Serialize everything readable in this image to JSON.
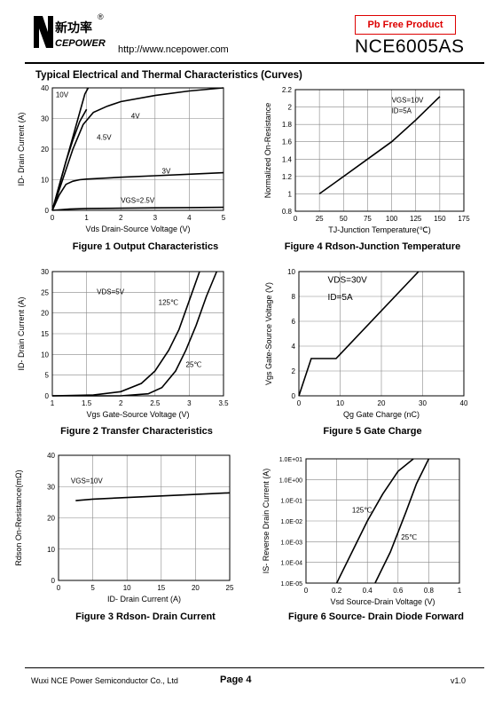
{
  "header": {
    "logo_text": "新功率",
    "logo_sub": "CEPOWER",
    "logo_mark": "N",
    "registered": "®",
    "url": "http://www.ncepower.com",
    "badge": "Pb Free Product",
    "part_number": "NCE6005AS"
  },
  "section_title": "Typical Electrical and Thermal Characteristics (Curves)",
  "figures": {
    "fig1": {
      "caption": "Figure 1 Output Characteristics",
      "xlabel": "Vds Drain-Source Voltage (V)",
      "ylabel": "ID- Drain Current (A)"
    },
    "fig2": {
      "caption": "Figure 2 Transfer Characteristics",
      "xlabel": "Vgs Gate-Source Voltage (V)",
      "ylabel": "ID- Drain Current (A)"
    },
    "fig3": {
      "caption": "Figure 3 Rdson- Drain Current",
      "xlabel": "ID- Drain Current (A)",
      "ylabel": "Rdson On-Resistance(mΩ)"
    },
    "fig4": {
      "caption": "Figure 4 Rdson-Junction Temperature",
      "xlabel": "TJ-Junction Temperature(℃)",
      "ylabel": "Normalized On-Resistance"
    },
    "fig5": {
      "caption": "Figure 5 Gate Charge",
      "xlabel": "Qg Gate Charge (nC)",
      "ylabel": "Vgs Gate-Source Voltage (V)"
    },
    "fig6": {
      "caption": "Figure 6 Source- Drain Diode Forward",
      "xlabel": "Vsd Source-Drain Voltage (V)",
      "ylabel": "IS- Reverse Drain Current (A)"
    }
  },
  "chart_data": [
    {
      "id": "fig1",
      "type": "line",
      "xlim": [
        0,
        5
      ],
      "ylim": [
        0,
        40
      ],
      "xticks": [
        0,
        1,
        2,
        3,
        4,
        5
      ],
      "yticks": [
        0,
        10,
        20,
        30,
        40
      ],
      "grid": true,
      "series": [
        {
          "name": "10V",
          "x": [
            0,
            0.2,
            0.4,
            0.6,
            0.8,
            0.95,
            1.05
          ],
          "y": [
            0,
            8,
            16,
            24,
            32,
            38,
            40
          ]
        },
        {
          "name": "4V",
          "x": [
            0,
            0.3,
            0.6,
            0.9,
            1.2,
            1.6,
            2,
            3,
            4,
            5
          ],
          "y": [
            0,
            10,
            20,
            28,
            32,
            34,
            35.5,
            37.5,
            39,
            40
          ]
        },
        {
          "name": "4.5V",
          "x": [
            0,
            0.2,
            0.4,
            0.6,
            0.8,
            1.0
          ],
          "y": [
            0,
            8,
            16,
            23,
            29,
            33
          ]
        },
        {
          "name": "3V",
          "x": [
            0,
            0.2,
            0.4,
            0.6,
            0.8,
            1,
            2,
            3,
            4,
            5
          ],
          "y": [
            0,
            5,
            8.5,
            9.5,
            10,
            10.2,
            10.8,
            11.3,
            11.8,
            12.3
          ]
        },
        {
          "name": "VGS=2.5V",
          "x": [
            0,
            0.5,
            1,
            2,
            3,
            4,
            5
          ],
          "y": [
            0,
            0.4,
            0.6,
            0.7,
            0.8,
            0.9,
            1.0
          ]
        }
      ],
      "labels": [
        "10V",
        "4V",
        "4.5V",
        "3V",
        "VGS=2.5V"
      ]
    },
    {
      "id": "fig2",
      "type": "line",
      "xlim": [
        1,
        3.5
      ],
      "ylim": [
        0,
        30
      ],
      "xticks": [
        1,
        1.5,
        2,
        2.5,
        3,
        3.5
      ],
      "yticks": [
        0,
        5,
        10,
        15,
        20,
        25,
        30
      ],
      "grid": true,
      "series": [
        {
          "name": "125℃",
          "x": [
            1,
            1.6,
            2.0,
            2.3,
            2.5,
            2.7,
            2.85,
            3.0,
            3.15
          ],
          "y": [
            0,
            0.2,
            1,
            3,
            6,
            11,
            16,
            23,
            30
          ]
        },
        {
          "name": "25℃",
          "x": [
            1,
            2.0,
            2.4,
            2.6,
            2.8,
            2.95,
            3.1,
            3.25,
            3.4
          ],
          "y": [
            0,
            0,
            0.5,
            2,
            6,
            11,
            17,
            24,
            30
          ]
        }
      ],
      "labels": [
        "VDS=5V",
        "125℃",
        "25℃"
      ]
    },
    {
      "id": "fig3",
      "type": "line",
      "xlim": [
        0,
        25
      ],
      "ylim": [
        0,
        40
      ],
      "xticks": [
        0,
        5,
        10,
        15,
        20,
        25
      ],
      "yticks": [
        0,
        10,
        20,
        30,
        40
      ],
      "grid": true,
      "series": [
        {
          "name": "VGS=10V",
          "x": [
            2.5,
            5,
            10,
            15,
            20,
            25
          ],
          "y": [
            25.5,
            26,
            26.5,
            27,
            27.5,
            28
          ]
        }
      ],
      "labels": [
        "VGS=10V"
      ]
    },
    {
      "id": "fig4",
      "type": "line",
      "xlim": [
        0,
        175
      ],
      "ylim": [
        0.8,
        2.2
      ],
      "xticks": [
        0,
        25,
        50,
        75,
        100,
        125,
        150,
        175
      ],
      "yticks": [
        0.8,
        1,
        1.2,
        1.4,
        1.6,
        1.8,
        2,
        2.2
      ],
      "grid": true,
      "series": [
        {
          "name": "VGS=10V ID=5A",
          "x": [
            25,
            50,
            75,
            100,
            125,
            150
          ],
          "y": [
            1.0,
            1.2,
            1.4,
            1.6,
            1.85,
            2.12
          ]
        }
      ],
      "labels": [
        "VGS=10V",
        "ID=5A"
      ]
    },
    {
      "id": "fig5",
      "type": "line",
      "xlim": [
        0,
        40
      ],
      "ylim": [
        0,
        10
      ],
      "xticks": [
        0,
        10,
        20,
        30,
        40
      ],
      "yticks": [
        0,
        2,
        4,
        6,
        8,
        10
      ],
      "grid": true,
      "series": [
        {
          "name": "VDS=30V ID=5A",
          "x": [
            0,
            3,
            9,
            29
          ],
          "y": [
            0,
            3,
            3,
            10
          ]
        }
      ],
      "labels": [
        "VDS=30V",
        "ID=5A"
      ]
    },
    {
      "id": "fig6",
      "type": "line",
      "xlim": [
        0,
        1.0
      ],
      "ylim_log": [
        -5,
        1
      ],
      "xticks": [
        0,
        0.2,
        0.4,
        0.6,
        0.8,
        1.0
      ],
      "yticks": [
        "1.0E-05",
        "1.0E-04",
        "1.0E-03",
        "1.0E-02",
        "1.0E-01",
        "1.0E+00",
        "1.0E+01"
      ],
      "grid": true,
      "series": [
        {
          "name": "125℃",
          "x": [
            0.2,
            0.3,
            0.4,
            0.5,
            0.6,
            0.7
          ],
          "logy": [
            -5,
            -3.5,
            -2,
            -0.7,
            0.4,
            1.0
          ]
        },
        {
          "name": "25℃",
          "x": [
            0.45,
            0.55,
            0.65,
            0.72,
            0.8
          ],
          "logy": [
            -5,
            -3.5,
            -1.6,
            -0.2,
            1.0
          ]
        }
      ],
      "labels": [
        "125℃",
        "25℃"
      ]
    }
  ],
  "footer": {
    "company": "Wuxi NCE Power Semiconductor Co., Ltd",
    "page": "Page 4",
    "version": "v1.0"
  }
}
